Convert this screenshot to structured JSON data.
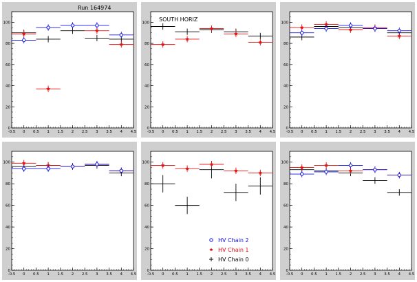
{
  "header": {
    "run_label": "Run 164974"
  },
  "colors": {
    "chain2": "#1010e0",
    "chain1": "#e01010",
    "chain0": "#000000",
    "pad_bg": "#cfcfcf",
    "frame_bg": "#ffffff"
  },
  "legend": {
    "entries": [
      {
        "label": "HV Chain 2",
        "marker": "open-circle",
        "color": "#1010e0"
      },
      {
        "label": "HV Chain 1",
        "marker": "star",
        "color": "#e01010"
      },
      {
        "label": "HV Chain 0",
        "marker": "plus",
        "color": "#000000"
      }
    ]
  },
  "chart_data": [
    {
      "type": "scatter",
      "title": "",
      "annotation": "",
      "xlim": [
        -0.5,
        4.5
      ],
      "ylim": [
        0,
        110
      ],
      "xticks": [
        "-0.5",
        "0",
        "0.5",
        "1",
        "1.5",
        "2",
        "2.5",
        "3",
        "3.5",
        "4",
        "4.5"
      ],
      "yticks": [
        "0",
        "20",
        "40",
        "60",
        "80",
        "100"
      ],
      "series": [
        {
          "name": "HV Chain 2",
          "x": [
            0,
            1,
            2,
            3,
            4
          ],
          "y": [
            83,
            95,
            97,
            97,
            88
          ]
        },
        {
          "name": "HV Chain 1",
          "x": [
            0,
            1,
            3,
            4
          ],
          "y": [
            89,
            37,
            92,
            79
          ]
        },
        {
          "name": "HV Chain 0",
          "x": [
            0,
            1,
            2,
            3,
            4
          ],
          "y": [
            90,
            84,
            92,
            85,
            84
          ]
        }
      ]
    },
    {
      "type": "scatter",
      "title": "",
      "annotation": "SOUTH HORIZ",
      "xlim": [
        -0.5,
        4.5
      ],
      "ylim": [
        0,
        110
      ],
      "xticks": [
        "-0.5",
        "0",
        "0.5",
        "1",
        "1.5",
        "2",
        "2.5",
        "3",
        "3.5",
        "4",
        "4.5"
      ],
      "yticks": [
        "0",
        "20",
        "40",
        "60",
        "80",
        "100"
      ],
      "series": [
        {
          "name": "HV Chain 2",
          "x": [],
          "y": []
        },
        {
          "name": "HV Chain 1",
          "x": [
            0,
            1,
            2,
            3,
            4
          ],
          "y": [
            79,
            84,
            94,
            89,
            81
          ]
        },
        {
          "name": "HV Chain 0",
          "x": [
            0,
            1,
            2,
            3,
            4
          ],
          "y": [
            96,
            91,
            93,
            91,
            87
          ]
        }
      ]
    },
    {
      "type": "scatter",
      "title": "",
      "annotation": "",
      "xlim": [
        -0.5,
        4.5
      ],
      "ylim": [
        0,
        110
      ],
      "xticks": [
        "-0.5",
        "0",
        "0.5",
        "1",
        "1.5",
        "2",
        "2.5",
        "3",
        "3.5",
        "4",
        "4.5"
      ],
      "yticks": [
        "0",
        "20",
        "40",
        "60",
        "80",
        "100"
      ],
      "series": [
        {
          "name": "HV Chain 2",
          "x": [
            0,
            1,
            2,
            3,
            4
          ],
          "y": [
            90,
            94,
            97,
            94,
            92
          ]
        },
        {
          "name": "HV Chain 1",
          "x": [
            0,
            1,
            2,
            3,
            4
          ],
          "y": [
            95,
            98,
            93,
            95,
            87
          ]
        },
        {
          "name": "HV Chain 0",
          "x": [
            0,
            1,
            2,
            3,
            4
          ],
          "y": [
            86,
            96,
            95,
            94,
            90
          ]
        }
      ]
    },
    {
      "type": "scatter",
      "title": "",
      "annotation": "",
      "xlim": [
        -0.5,
        4.5
      ],
      "ylim": [
        0,
        110
      ],
      "xticks": [
        "-0.5",
        "0",
        "0.5",
        "1",
        "1.5",
        "2",
        "2.5",
        "3",
        "3.5",
        "4",
        "4.5"
      ],
      "yticks": [
        "0",
        "20",
        "40",
        "60",
        "80",
        "100"
      ],
      "series": [
        {
          "name": "HV Chain 2",
          "x": [
            0,
            1,
            2,
            3,
            4
          ],
          "y": [
            94,
            94,
            96,
            98,
            92
          ]
        },
        {
          "name": "HV Chain 1",
          "x": [
            0,
            1,
            2,
            3,
            4
          ],
          "y": [
            99,
            97,
            96,
            98,
            92
          ]
        },
        {
          "name": "HV Chain 0",
          "x": [
            0,
            1,
            2,
            3,
            4
          ],
          "y": [
            96,
            97,
            96,
            97,
            90
          ]
        }
      ]
    },
    {
      "type": "scatter",
      "title": "",
      "annotation": "",
      "xlim": [
        -0.5,
        4.5
      ],
      "ylim": [
        0,
        110
      ],
      "xticks": [
        "-0.5",
        "0",
        "0.5",
        "1",
        "1.5",
        "2",
        "2.5",
        "3",
        "3.5",
        "4",
        "4.5"
      ],
      "yticks": [
        "0",
        "20",
        "40",
        "60",
        "80",
        "100"
      ],
      "legend": true,
      "series": [
        {
          "name": "HV Chain 2",
          "x": [],
          "y": []
        },
        {
          "name": "HV Chain 1",
          "x": [
            0,
            1,
            2,
            3,
            4
          ],
          "y": [
            97,
            94,
            98,
            92,
            90
          ]
        },
        {
          "name": "HV Chain 0",
          "x": [
            0,
            1,
            2,
            3,
            4
          ],
          "y": [
            80,
            60,
            93,
            72,
            78
          ]
        }
      ]
    },
    {
      "type": "scatter",
      "title": "",
      "annotation": "",
      "xlim": [
        -0.5,
        4.5
      ],
      "ylim": [
        0,
        110
      ],
      "xticks": [
        "-0.5",
        "0",
        "0.5",
        "1",
        "1.5",
        "2",
        "2.5",
        "3",
        "3.5",
        "4",
        "4.5"
      ],
      "yticks": [
        "0",
        "20",
        "40",
        "60",
        "80",
        "100"
      ],
      "series": [
        {
          "name": "HV Chain 2",
          "x": [
            0,
            1,
            2,
            3,
            4
          ],
          "y": [
            89,
            91,
            97,
            93,
            88
          ]
        },
        {
          "name": "HV Chain 1",
          "x": [
            0,
            1,
            2,
            3,
            4
          ],
          "y": [
            95,
            97,
            92,
            93,
            88
          ]
        },
        {
          "name": "HV Chain 0",
          "x": [
            0,
            1,
            2,
            3,
            4
          ],
          "y": [
            93,
            92,
            90,
            83,
            72
          ]
        }
      ]
    }
  ]
}
